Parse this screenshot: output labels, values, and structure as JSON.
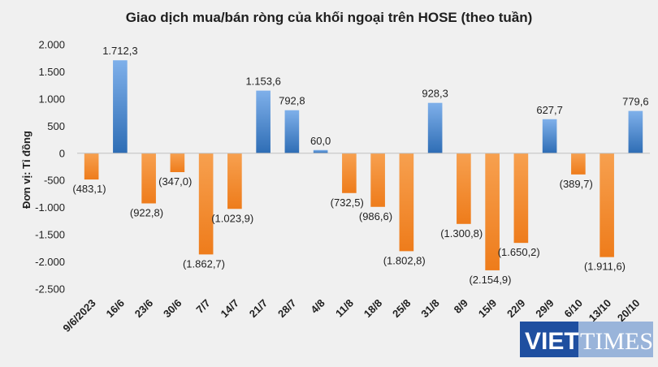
{
  "chart_data": {
    "type": "bar",
    "title": "Giao dịch mua/bán ròng của khối ngoại trên HOSE (theo tuần)",
    "ylabel": "Đơn vị: Tỉ đồng",
    "xlabel": "",
    "ylim": [
      -2500,
      2000
    ],
    "yticks": [
      2000,
      1500,
      1000,
      500,
      0,
      -500,
      -1000,
      -1500,
      -2000,
      -2500
    ],
    "ytick_labels": [
      "2.000",
      "1.500",
      "1.000",
      "500",
      "0",
      "-500",
      "-1.000",
      "-1.500",
      "-2.000",
      "-2.500"
    ],
    "categories": [
      "9/6/2023",
      "16/6",
      "23/6",
      "30/6",
      "7/7",
      "14/7",
      "21/7",
      "28/7",
      "4/8",
      "11/8",
      "18/8",
      "25/8",
      "31/8",
      "8/9",
      "15/9",
      "22/9",
      "29/9",
      "6/10",
      "13/10",
      "20/10"
    ],
    "values": [
      -483.1,
      1712.3,
      -922.8,
      -347.0,
      -1862.7,
      -1023.9,
      1153.6,
      792.8,
      60.0,
      -732.5,
      -986.6,
      -1802.8,
      928.3,
      -1300.8,
      -2154.9,
      -1650.2,
      627.7,
      -389.7,
      -1911.6,
      779.6
    ],
    "data_labels": [
      "(483,1)",
      "1.712,3",
      "(922,8)",
      "(347,0)",
      "(1.862,7)",
      "(1.023,9)",
      "1.153,6",
      "792,8",
      "60,0",
      "(732,5)",
      "(986,6)",
      "(1.802,8)",
      "928,3",
      "(1.300,8)",
      "(2.154,9)",
      "(1.650,2)",
      "627,7",
      "(389,7)",
      "(1.911,6)",
      "779,6"
    ],
    "grid": false,
    "legend": "none",
    "colors": {
      "positive": "#4f8fd8",
      "positive_dark": "#2e6db5",
      "negative": "#f58a2a",
      "negative_dark": "#e06f10",
      "axis": "#bfbfbf"
    }
  },
  "watermark": {
    "text_a": "VIET",
    "text_b": "TIMES",
    "color": "#1f4fa0"
  }
}
